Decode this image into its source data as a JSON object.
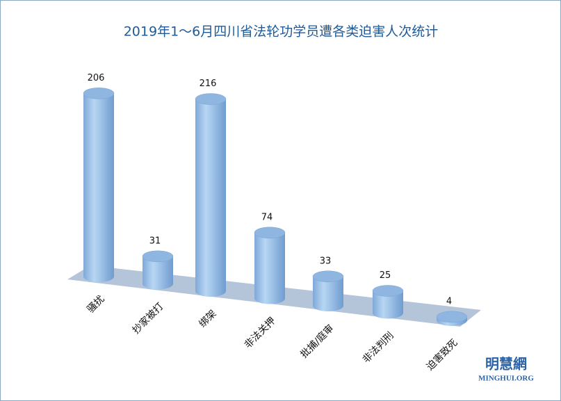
{
  "chart_data": {
    "type": "cylinder-bar",
    "title": "2019年1～6月四川省法轮功学员遭各类迫害人次统计",
    "categories": [
      "骚扰",
      "抄家被打",
      "绑架",
      "非法关押",
      "批捕/庭审",
      "非法判刑",
      "迫害致死"
    ],
    "values": [
      206,
      31,
      216,
      74,
      33,
      25,
      4
    ],
    "color": "#9cc3ea",
    "watermark": "明慧網",
    "watermark_url": "MINGHUI.ORG"
  }
}
